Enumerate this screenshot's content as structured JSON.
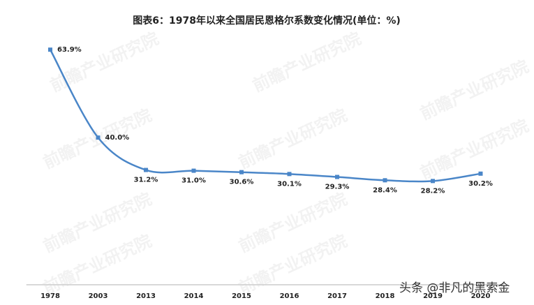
{
  "chart_data": {
    "type": "line",
    "title": "图表6：1978年以来全国居民恩格尔系数变化情况(单位：%)",
    "categories": [
      "1978",
      "2003",
      "2013",
      "2014",
      "2015",
      "2016",
      "2017",
      "2018",
      "2019",
      "2020"
    ],
    "values": [
      63.9,
      40.0,
      31.2,
      31.0,
      30.6,
      30.1,
      29.3,
      28.4,
      28.2,
      30.2
    ],
    "value_labels": [
      "63.9%",
      "40.0%",
      "31.2%",
      "31.0%",
      "30.6%",
      "30.1%",
      "29.3%",
      "28.4%",
      "28.2%",
      "30.2%"
    ],
    "color": "#4a86c8",
    "ylim": [
      0,
      70
    ],
    "watermark_logo": "前瞻产业研究院",
    "watermark": "头条 @非凡的黑索金"
  }
}
